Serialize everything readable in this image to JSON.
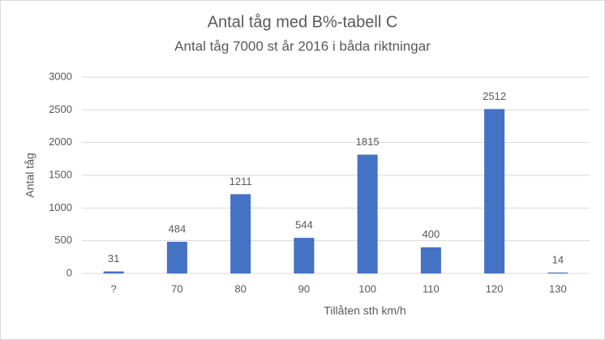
{
  "chart_data": {
    "type": "bar",
    "title": "Antal tåg med B%-tabell C",
    "subtitle": "Antal tåg 7000 st år 2016 i båda riktningar",
    "xlabel": "Tillåten sth km/h",
    "ylabel": "Antal tåg",
    "categories": [
      "?",
      "70",
      "80",
      "90",
      "100",
      "110",
      "120",
      "130"
    ],
    "values": [
      31,
      484,
      1211,
      544,
      1815,
      400,
      2512,
      14
    ],
    "color": "#4472c4",
    "ylim": [
      0,
      3000
    ],
    "yticks": [
      0,
      500,
      1000,
      1500,
      2000,
      2500,
      3000
    ],
    "grid": true
  }
}
